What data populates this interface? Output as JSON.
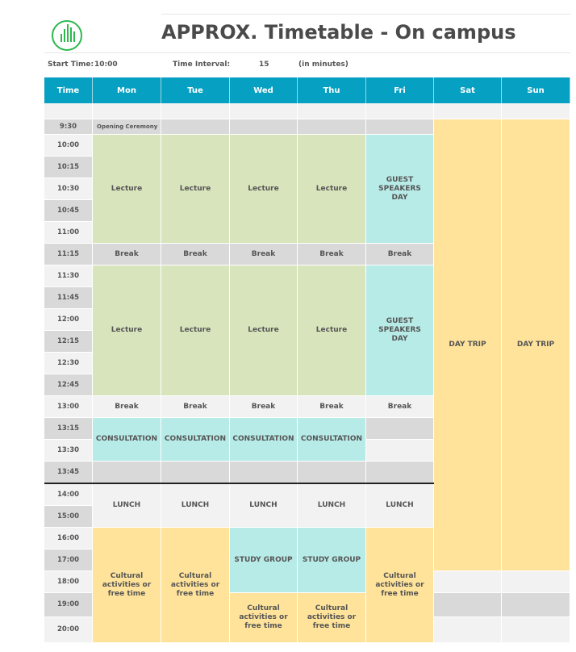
{
  "title": "APPROX. Timetable - On campus",
  "settings": {
    "start_label": "Start Time:",
    "start_value": "10:00",
    "interval_label": "Time Interval:",
    "interval_value": "15",
    "interval_unit": "(in minutes)"
  },
  "columns": [
    "Time",
    "Mon",
    "Tue",
    "Wed",
    "Thu",
    "Fri",
    "Sat",
    "Sun"
  ],
  "times": [
    "9:30",
    "10:00",
    "10:15",
    "10:30",
    "10:45",
    "11:00",
    "11:15",
    "11:30",
    "11:45",
    "12:00",
    "12:15",
    "12:30",
    "12:45",
    "13:00",
    "13:15",
    "13:30",
    "13:45",
    "14:00",
    "15:00",
    "16:00",
    "17:00",
    "18:00",
    "19:00",
    "20:00"
  ],
  "colors": {
    "header": "#06a0c2",
    "lecture": "#d8e4bc",
    "guest": "#b7ebe7",
    "break": "#f2f2f2",
    "grey": "#d9d9d9",
    "cultural": "#ffe39b",
    "logo": "#2db84d"
  },
  "events": [
    {
      "day": "Mon",
      "start": "9:30",
      "end": "9:30",
      "label": "Opening Ceremony",
      "kind": "grey",
      "small": true
    },
    {
      "day": "Mon",
      "start": "10:00",
      "end": "11:00",
      "label": "Lecture",
      "kind": "lecture"
    },
    {
      "day": "Tue",
      "start": "10:00",
      "end": "11:00",
      "label": "Lecture",
      "kind": "lecture"
    },
    {
      "day": "Wed",
      "start": "10:00",
      "end": "11:00",
      "label": "Lecture",
      "kind": "lecture"
    },
    {
      "day": "Thu",
      "start": "10:00",
      "end": "11:00",
      "label": "Lecture",
      "kind": "lecture"
    },
    {
      "day": "Fri",
      "start": "10:00",
      "end": "11:00",
      "label": "GUEST SPEAKERS DAY",
      "kind": "guest"
    },
    {
      "day": "Mon",
      "start": "11:15",
      "end": "11:15",
      "label": "Break",
      "kind": "grey"
    },
    {
      "day": "Tue",
      "start": "11:15",
      "end": "11:15",
      "label": "Break",
      "kind": "grey"
    },
    {
      "day": "Wed",
      "start": "11:15",
      "end": "11:15",
      "label": "Break",
      "kind": "grey"
    },
    {
      "day": "Thu",
      "start": "11:15",
      "end": "11:15",
      "label": "Break",
      "kind": "grey"
    },
    {
      "day": "Fri",
      "start": "11:15",
      "end": "11:15",
      "label": "Break",
      "kind": "grey"
    },
    {
      "day": "Mon",
      "start": "11:30",
      "end": "12:45",
      "label": "Lecture",
      "kind": "lecture"
    },
    {
      "day": "Tue",
      "start": "11:30",
      "end": "12:45",
      "label": "Lecture",
      "kind": "lecture"
    },
    {
      "day": "Wed",
      "start": "11:30",
      "end": "12:45",
      "label": "Lecture",
      "kind": "lecture"
    },
    {
      "day": "Thu",
      "start": "11:30",
      "end": "12:45",
      "label": "Lecture",
      "kind": "lecture"
    },
    {
      "day": "Fri",
      "start": "11:30",
      "end": "12:45",
      "label": "GUEST SPEAKERS DAY",
      "kind": "guest"
    },
    {
      "day": "Mon",
      "start": "13:00",
      "end": "13:00",
      "label": "Break",
      "kind": "break"
    },
    {
      "day": "Tue",
      "start": "13:00",
      "end": "13:00",
      "label": "Break",
      "kind": "break"
    },
    {
      "day": "Wed",
      "start": "13:00",
      "end": "13:00",
      "label": "Break",
      "kind": "break"
    },
    {
      "day": "Thu",
      "start": "13:00",
      "end": "13:00",
      "label": "Break",
      "kind": "break"
    },
    {
      "day": "Fri",
      "start": "13:00",
      "end": "13:00",
      "label": "Break",
      "kind": "break"
    },
    {
      "day": "Mon",
      "start": "13:15",
      "end": "13:30",
      "label": "CONSULTATION",
      "kind": "guest"
    },
    {
      "day": "Tue",
      "start": "13:15",
      "end": "13:30",
      "label": "CONSULTATION",
      "kind": "guest"
    },
    {
      "day": "Wed",
      "start": "13:15",
      "end": "13:30",
      "label": "CONSULTATION",
      "kind": "guest"
    },
    {
      "day": "Thu",
      "start": "13:15",
      "end": "13:30",
      "label": "CONSULTATION",
      "kind": "guest"
    },
    {
      "day": "Mon",
      "start": "14:00",
      "end": "15:00",
      "label": "LUNCH",
      "kind": "break"
    },
    {
      "day": "Tue",
      "start": "14:00",
      "end": "15:00",
      "label": "LUNCH",
      "kind": "break"
    },
    {
      "day": "Wed",
      "start": "14:00",
      "end": "15:00",
      "label": "LUNCH",
      "kind": "break"
    },
    {
      "day": "Thu",
      "start": "14:00",
      "end": "15:00",
      "label": "LUNCH",
      "kind": "break"
    },
    {
      "day": "Fri",
      "start": "14:00",
      "end": "15:00",
      "label": "LUNCH",
      "kind": "break"
    },
    {
      "day": "Mon",
      "start": "16:00",
      "end": "20:00",
      "label": "Cultural activities or free time",
      "kind": "cultural"
    },
    {
      "day": "Tue",
      "start": "16:00",
      "end": "20:00",
      "label": "Cultural activities or free time",
      "kind": "cultural"
    },
    {
      "day": "Wed",
      "start": "16:00",
      "end": "18:00",
      "label": "STUDY GROUP",
      "kind": "guest"
    },
    {
      "day": "Thu",
      "start": "16:00",
      "end": "18:00",
      "label": "STUDY GROUP",
      "kind": "guest"
    },
    {
      "day": "Wed",
      "start": "19:00",
      "end": "20:00",
      "label": "Cultural activities or free time",
      "kind": "cultural"
    },
    {
      "day": "Thu",
      "start": "19:00",
      "end": "20:00",
      "label": "Cultural activities or free time",
      "kind": "cultural"
    },
    {
      "day": "Fri",
      "start": "16:00",
      "end": "20:00",
      "label": "Cultural activities or free time",
      "kind": "cultural"
    },
    {
      "day": "Sat",
      "start": "9:30",
      "end": "17:00",
      "label": "DAY TRIP",
      "kind": "cultural"
    },
    {
      "day": "Sun",
      "start": "9:30",
      "end": "17:00",
      "label": "DAY TRIP",
      "kind": "cultural"
    }
  ]
}
